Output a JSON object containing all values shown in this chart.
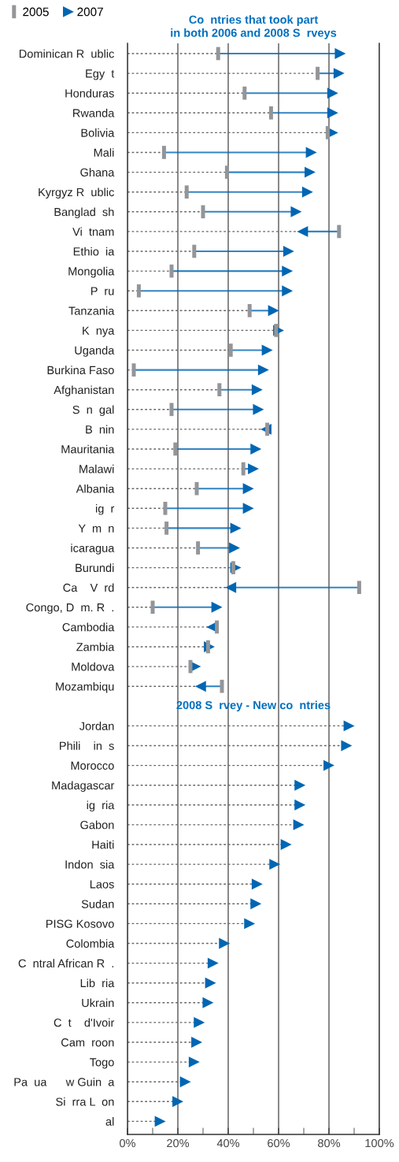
{
  "chart_data": {
    "type": "scatter",
    "title": "Co  ntries that took part\nin both 2006 and 2008 S  rveys",
    "categories": [
      "Dominican R  ublic",
      "Egy  t",
      "Honduras",
      "Rwanda",
      "Bolivia",
      "Mali",
      "Ghana",
      "Kyrgyz R  ublic",
      "Banglad  sh",
      "Vi  tnam",
      "Ethio  ia",
      "Mongolia",
      "P  ru",
      "Tanzania",
      "K  nya",
      "Uganda",
      "Burkina Faso",
      "Afghanistan",
      "S  n  gal",
      "B  nin",
      "Mauritania",
      "Malawi",
      "Albania",
      "ig  r",
      "Y  m  n",
      "icaragua",
      "Burundi",
      "Ca    V  rd",
      "Congo, D  m. R  .",
      "Cambodia",
      "Zambia",
      "Moldova",
      "Mozambiqu",
      null,
      "Jordan",
      "Phili    in  s",
      "Morocco",
      "Madagascar",
      "ig  ria",
      "Gabon",
      "Haiti",
      "Indon  sia",
      "Laos",
      "Sudan",
      "PISG Kosovo",
      "Colombia",
      "C  ntral African R  .",
      "Lib  ria",
      "Ukrain",
      "C  t    d'Ivoir",
      "Cam  roon",
      "Togo",
      "Pa  ua      w Guin  a",
      "Si  rra L  on",
      "al"
    ],
    "series": [
      {
        "name": "2005",
        "color": "#939598",
        "values": [
          36,
          75.5,
          46.5,
          57,
          79.5,
          14.5,
          39.5,
          23.5,
          30,
          84,
          26.5,
          17.5,
          4.5,
          48.5,
          59,
          41,
          2.5,
          36.5,
          17.5,
          55.5,
          19,
          46,
          27.5,
          15,
          15.5,
          28,
          42,
          92,
          10,
          35.5,
          32,
          25,
          37.5,
          null,
          null,
          null,
          null,
          null,
          null,
          null,
          null,
          null,
          null,
          null,
          null,
          null,
          null,
          null,
          null,
          null,
          null,
          null,
          null,
          null,
          null
        ]
      },
      {
        "name": "2007",
        "color": "#0066b3",
        "marker": "triangle",
        "values": [
          84.5,
          84,
          81.5,
          81.5,
          81.5,
          73,
          72.5,
          71.5,
          67,
          69.5,
          64,
          63.5,
          63.5,
          58,
          60,
          55.5,
          54,
          51.5,
          52,
          55,
          51,
          50,
          48,
          48,
          43,
          42.5,
          43,
          41,
          35.5,
          33.5,
          32.5,
          27,
          29,
          null,
          88,
          87,
          80,
          68.5,
          68.5,
          68,
          63,
          58.5,
          51.5,
          51,
          48.5,
          38.5,
          34,
          33,
          32,
          28.5,
          27.5,
          26.5,
          23,
          20,
          13
        ]
      }
    ],
    "annotations": [
      "2008 S  rvey - New co  ntries"
    ],
    "xlim": [
      0,
      100
    ],
    "xticks": [
      {
        "value": 0,
        "label": "0%"
      },
      {
        "value": 10,
        "label": null
      },
      {
        "value": 20,
        "label": "20%"
      },
      {
        "value": 30,
        "label": null
      },
      {
        "value": 40,
        "label": "40%"
      },
      {
        "value": 50,
        "label": null
      },
      {
        "value": 60,
        "label": "60%"
      },
      {
        "value": 70,
        "label": null
      },
      {
        "value": 80,
        "label": "80%"
      },
      {
        "value": 90,
        "label": null
      },
      {
        "value": 100,
        "label": "100%"
      }
    ],
    "grid": true,
    "legend": "top left",
    "orientation": "horizontal"
  }
}
